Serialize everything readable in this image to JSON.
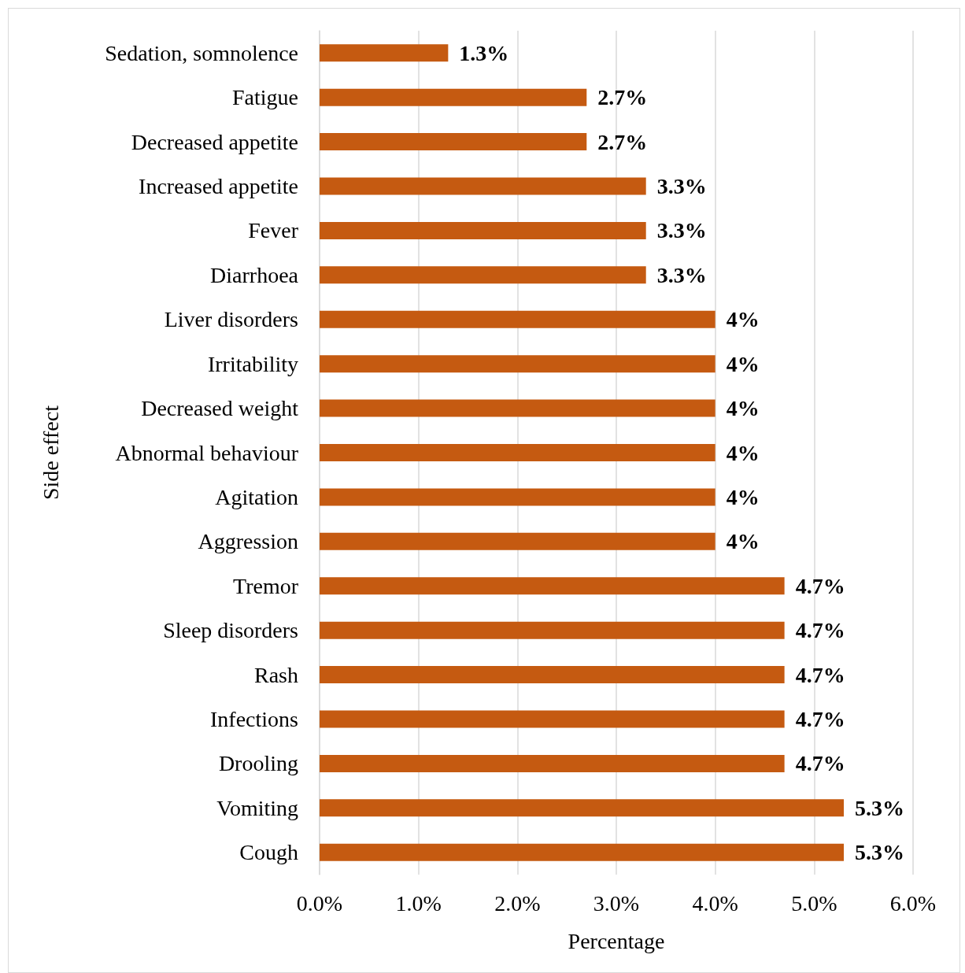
{
  "chart_data": {
    "type": "bar",
    "orientation": "horizontal",
    "xlabel": "Percentage",
    "ylabel": "Side effect",
    "categories": [
      "Sedation, somnolence",
      "Fatigue",
      "Decreased appetite",
      "Increased appetite",
      "Fever",
      "Diarrhoea",
      "Liver disorders",
      "Irritability",
      "Decreased weight",
      "Abnormal behaviour",
      "Agitation",
      "Aggression",
      "Tremor",
      "Sleep disorders",
      "Rash",
      "Infections",
      "Drooling",
      "Vomiting",
      "Cough"
    ],
    "values": [
      1.3,
      2.7,
      2.7,
      3.3,
      3.3,
      3.3,
      4,
      4,
      4,
      4,
      4,
      4,
      4.7,
      4.7,
      4.7,
      4.7,
      4.7,
      5.3,
      5.3
    ],
    "value_labels": [
      "1.3%",
      "2.7%",
      "2.7%",
      "3.3%",
      "3.3%",
      "3.3%",
      "4%",
      "4%",
      "4%",
      "4%",
      "4%",
      "4%",
      "4.7%",
      "4.7%",
      "4.7%",
      "4.7%",
      "4.7%",
      "5.3%",
      "5.3%"
    ],
    "color": "#c55a11",
    "xlim": [
      0,
      6
    ],
    "xticks": [
      {
        "value": 0,
        "label": "0.0%"
      },
      {
        "value": 1,
        "label": "1.0%"
      },
      {
        "value": 2,
        "label": "2.0%"
      },
      {
        "value": 3,
        "label": "3.0%"
      },
      {
        "value": 4,
        "label": "4.0%"
      },
      {
        "value": 5,
        "label": "5.0%"
      },
      {
        "value": 6,
        "label": "6.0%"
      }
    ],
    "grid": "x"
  }
}
